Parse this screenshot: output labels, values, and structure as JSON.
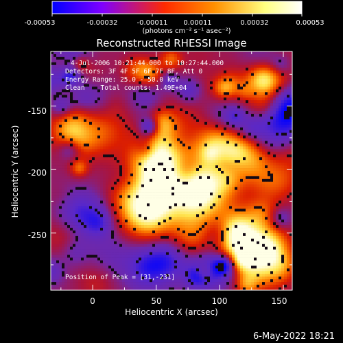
{
  "chart_data": {
    "type": "heatmap",
    "title": "Reconstructed RHESSI Image",
    "xlabel": "Heliocentric X (arcsec)",
    "ylabel": "Heliocentric Y (arcsec)",
    "xlim": [
      -33,
      157
    ],
    "ylim": [
      -295,
      -107
    ],
    "x_ticks": [
      0,
      50,
      100,
      150
    ],
    "y_ticks": [
      -150,
      -200,
      -250
    ],
    "colorbar": {
      "tick_labels": [
        "-0.00053",
        "-0.00032",
        "-0.00011",
        "0.00011",
        "0.00032",
        "0.00053"
      ],
      "range": [
        -0.00053,
        0.00053
      ],
      "unit_label": "(photons cm⁻² s⁻¹ asec⁻²)",
      "colormap": [
        "#0000ff",
        "#7f00ff",
        "#ff2a00",
        "#ff9000",
        "#ffff7f",
        "#ffffff"
      ]
    },
    "annotations": [
      "4-Jul-2006 10:21:44.000 to 10:27:44.000",
      "Detectors: 3F 4F 5F 6F 7F 8F, Att 0",
      "Energy Range: 25.0 - 50.0 keV",
      "Clean    Total counts: 1.49E+04"
    ],
    "peak_label": "Position of Peak = [31,-231]",
    "peak_position": [
      31,
      -231
    ]
  },
  "footer": {
    "date": "6-May-2022 18:21"
  }
}
